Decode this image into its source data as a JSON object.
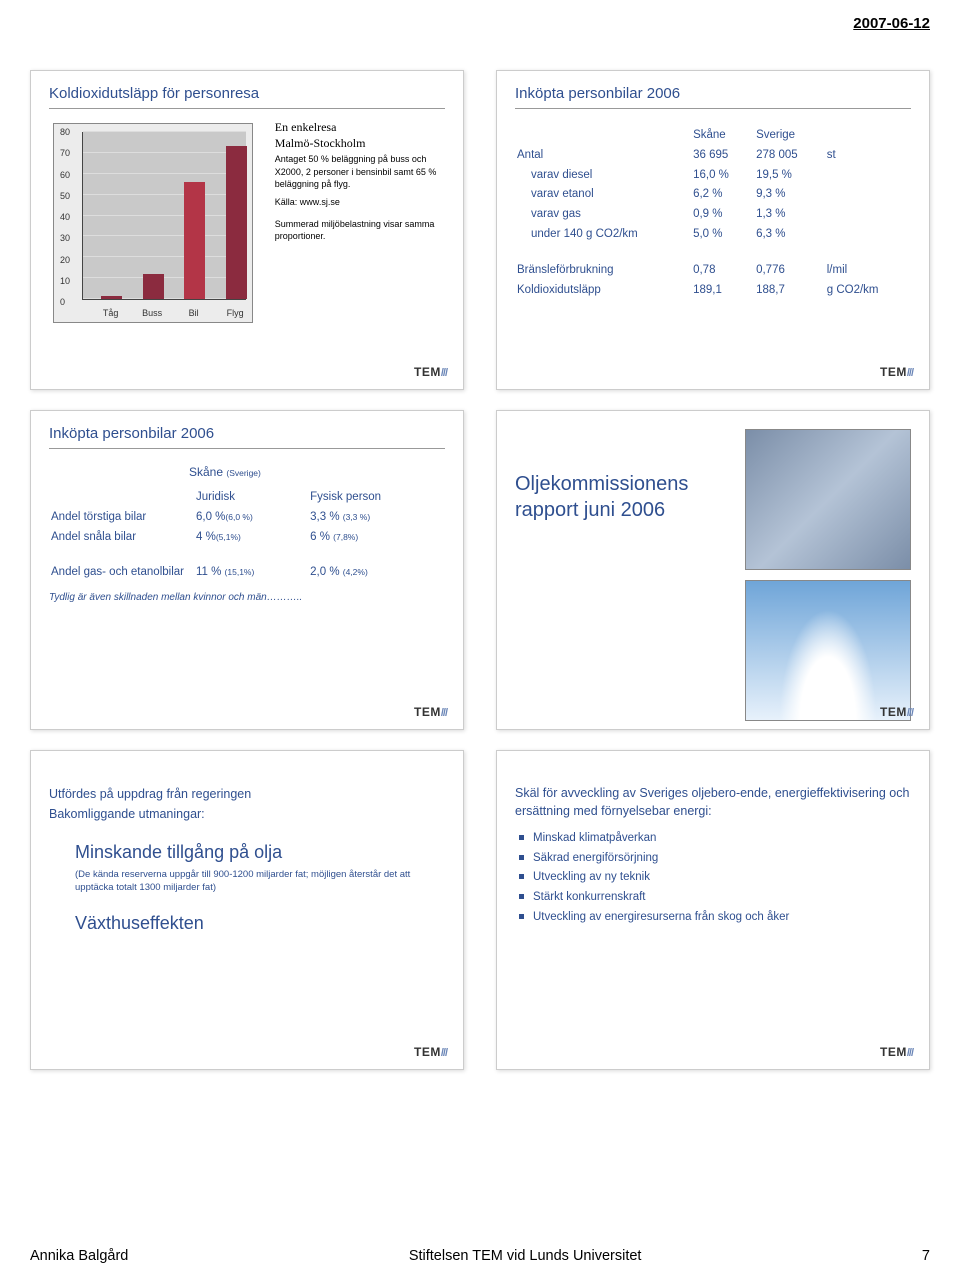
{
  "page": {
    "date": "2007-06-12",
    "footer_author": "Annika Balgård",
    "footer_org": "Stiftelsen TEM vid Lunds Universitet",
    "footer_page": "7",
    "tem": "TEM",
    "tem_bars": "///"
  },
  "s1": {
    "title": "Koldioxidutsläpp för personresa",
    "note_line1": "En enkelresa",
    "note_line2": "Malmö-Stockholm",
    "note_small1": "Antaget 50 % beläggning på buss och X2000, 2 personer i bensinbil samt 65 % beläggning på flyg.",
    "note_small2": "Källa: www.sj.se",
    "note_small3": "Summerad miljöbelastning visar samma proportioner.",
    "chart": {
      "y_max": 80,
      "y_step": 10,
      "categories": [
        "Tåg",
        "Buss",
        "Bil",
        "Flyg"
      ],
      "values": [
        1.5,
        12,
        55,
        72
      ],
      "bar_colors": [
        "#8b2b3f",
        "#8b2b3f",
        "#b33547",
        "#8b2b3f"
      ],
      "bg": "#c9c9c9"
    }
  },
  "s2": {
    "title": "Inköpta personbilar 2006",
    "col1": "Skåne",
    "col2": "Sverige",
    "rows": [
      {
        "l": "Antal",
        "a": "36 695",
        "b": "278 005",
        "u": "st"
      },
      {
        "l": "varav diesel",
        "a": "16,0 %",
        "b": "19,5 %",
        "indent": true
      },
      {
        "l": "varav etanol",
        "a": "6,2 %",
        "b": "9,3 %",
        "indent": true
      },
      {
        "l": "varav gas",
        "a": "0,9 %",
        "b": "1,3 %",
        "indent": true
      },
      {
        "l": "under 140 g CO2/km",
        "a": "5,0 %",
        "b": "6,3 %",
        "indent": true
      }
    ],
    "rows2": [
      {
        "l": "Bränsleförbrukning",
        "a": "0,78",
        "b": "0,776",
        "u": "l/mil"
      },
      {
        "l": "Koldioxidutsläpp",
        "a": "189,1",
        "b": "188,7",
        "u": "g CO2/km"
      }
    ]
  },
  "s3": {
    "title": "Inköpta personbilar 2006",
    "region": "Skåne",
    "region_paren": "(Sverige)",
    "h_jur": "Juridisk",
    "h_fys": "Fysisk  person",
    "rows": [
      {
        "l": "Andel törstiga bilar",
        "a": "6,0 %",
        "as": "(6,0 %)",
        "b": "3,3 %",
        "bs": "(3,3 %)"
      },
      {
        "l": "Andel snåla bilar",
        "a": "4 %",
        "as": "(5,1%)",
        "b": "6 %",
        "bs": "(7,8%)"
      }
    ],
    "row_gas_label": "Andel gas- och etanolbilar",
    "row_gas_a": "11 %",
    "row_gas_as": "(15,1%)",
    "row_gas_b": "2,0 %",
    "row_gas_bs": "(4,2%)",
    "footnote": "Tydlig är även skillnaden mellan kvinnor och män……….."
  },
  "s4": {
    "title_l1": "Oljekommissionens",
    "title_l2": "rapport  juni 2006"
  },
  "s5": {
    "lead1": "Utfördes på uppdrag från regeringen",
    "lead2": "Bakomliggande utmaningar:",
    "h1": "Minskande tillgång på olja",
    "h1_paren": "(De kända reserverna uppgår till 900-1200 miljarder fat; möjligen återstår det att upptäcka totalt 1300 miljarder fat)",
    "h2": "Växthuseffekten"
  },
  "s6": {
    "lead": "Skäl för avveckling av Sveriges oljebero-ende, energieffektivisering och ersättning med förnyelsebar energi:",
    "bullets": [
      "Minskad klimatpåverkan",
      "Säkrad energiförsörjning",
      "Utveckling av ny teknik",
      "Stärkt konkurrenskraft",
      "Utveckling av energiresurserna från skog och åker"
    ]
  }
}
